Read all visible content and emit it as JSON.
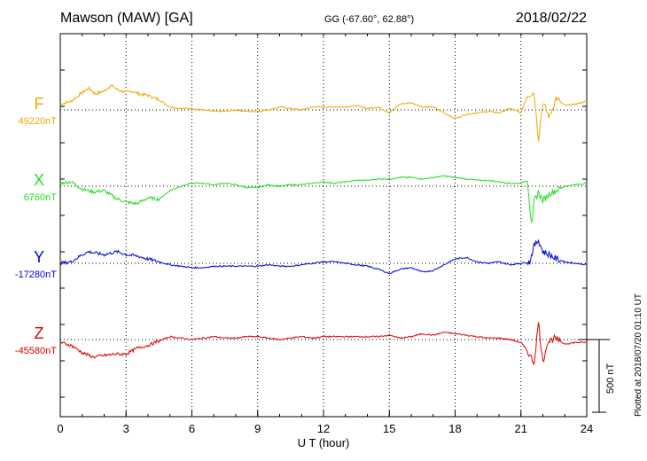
{
  "header": {
    "station": "Mawson (MAW)  [GA]",
    "coords": "GG (-67.60°,  62.88°)",
    "date": "2018/02/22"
  },
  "footer": {
    "plotted": "Plotted at 2018/07/20 01:10 UT"
  },
  "chart_data": {
    "type": "line",
    "xlabel": "U T (hour)",
    "xlim": [
      0,
      24
    ],
    "xticks": [
      0,
      3,
      6,
      9,
      12,
      15,
      18,
      21,
      24
    ],
    "grid": true,
    "scale_bar": {
      "label": "500 nT",
      "value_nT": 500
    },
    "series": [
      {
        "name": "F",
        "baseline_label": "49220nT",
        "baseline_nT": 49220,
        "color": "#f0a800",
        "x": [
          0,
          0.5,
          1,
          1.3,
          1.6,
          2,
          2.3,
          2.6,
          3,
          3.3,
          3.6,
          4,
          4.5,
          5,
          5.5,
          6,
          6.5,
          7,
          7.5,
          8,
          8.5,
          9,
          9.5,
          10,
          10.5,
          11,
          11.5,
          12,
          12.5,
          13,
          13.5,
          14,
          14.5,
          15,
          15.5,
          16,
          16.5,
          17,
          17.5,
          18,
          18.5,
          19,
          19.5,
          20,
          20.5,
          21,
          21.3,
          21.6,
          21.8,
          22,
          22.3,
          22.6,
          23,
          23.5,
          24
        ],
        "y": [
          40,
          60,
          120,
          150,
          110,
          130,
          170,
          140,
          120,
          130,
          110,
          100,
          70,
          20,
          10,
          10,
          0,
          -10,
          -10,
          0,
          -10,
          -10,
          0,
          20,
          10,
          0,
          20,
          20,
          20,
          20,
          30,
          10,
          20,
          -20,
          40,
          50,
          20,
          20,
          -20,
          -60,
          -30,
          -20,
          -10,
          -20,
          10,
          -20,
          100,
          120,
          -200,
          50,
          -50,
          80,
          30,
          40,
          60
        ]
      },
      {
        "name": "X",
        "baseline_label": "6760nT",
        "baseline_nT": 6760,
        "color": "#22dd22",
        "x": [
          0,
          0.5,
          1,
          1.5,
          2,
          2.5,
          3,
          3.5,
          4,
          4.5,
          5,
          5.5,
          6,
          6.5,
          7,
          7.5,
          8,
          8.5,
          9,
          9.5,
          10,
          10.5,
          11,
          11.5,
          12,
          12.5,
          13,
          13.5,
          14,
          14.5,
          15,
          15.5,
          16,
          16.5,
          17,
          17.5,
          18,
          18.5,
          19,
          19.5,
          20,
          20.5,
          21,
          21.3,
          21.5,
          21.6,
          21.8,
          22,
          22.3,
          22.6,
          23,
          23.5,
          24
        ],
        "y": [
          20,
          30,
          -20,
          -40,
          -30,
          -80,
          -110,
          -120,
          -80,
          -90,
          -30,
          0,
          20,
          20,
          10,
          20,
          10,
          -10,
          -10,
          10,
          0,
          10,
          10,
          20,
          30,
          20,
          30,
          40,
          40,
          50,
          50,
          60,
          60,
          50,
          60,
          70,
          60,
          50,
          40,
          40,
          30,
          20,
          20,
          40,
          -300,
          -100,
          -40,
          -100,
          -50,
          -30,
          0,
          10,
          20
        ]
      },
      {
        "name": "Y",
        "baseline_label": "-17280nT",
        "baseline_nT": -17280,
        "color": "#0000dd",
        "x": [
          0,
          0.5,
          1,
          1.3,
          1.6,
          2,
          2.3,
          2.6,
          3,
          3.5,
          4,
          4.5,
          5,
          5.5,
          6,
          6.5,
          7,
          7.5,
          8,
          8.5,
          9,
          9.5,
          10,
          10.5,
          11,
          11.5,
          12,
          12.5,
          13,
          13.5,
          14,
          14.5,
          15,
          15.5,
          16,
          16.5,
          17,
          17.5,
          18,
          18.5,
          19,
          19.5,
          20,
          20.5,
          21,
          21.4,
          21.6,
          21.8,
          22,
          22.3,
          22.6,
          23,
          23.5,
          24
        ],
        "y": [
          0,
          10,
          60,
          80,
          70,
          60,
          70,
          80,
          60,
          50,
          30,
          10,
          -10,
          -20,
          -30,
          -30,
          -20,
          -20,
          -20,
          -20,
          -20,
          -10,
          -20,
          -20,
          -10,
          0,
          10,
          10,
          0,
          -10,
          -20,
          -40,
          -70,
          -40,
          -30,
          -60,
          -50,
          -10,
          30,
          40,
          10,
          0,
          10,
          -10,
          0,
          10,
          120,
          160,
          80,
          60,
          30,
          10,
          0,
          -10
        ]
      },
      {
        "name": "Z",
        "baseline_label": "-45580nT",
        "baseline_nT": -45580,
        "color": "#dd0000",
        "x": [
          0,
          0.5,
          1,
          1.5,
          2,
          2.5,
          3,
          3.5,
          4,
          4.5,
          5,
          5.5,
          6,
          6.5,
          7,
          7.5,
          8,
          8.5,
          9,
          9.5,
          10,
          10.5,
          11,
          11.5,
          12,
          12.5,
          13,
          13.5,
          14,
          14.5,
          15,
          15.5,
          16,
          16.5,
          17,
          17.5,
          18,
          18.5,
          19,
          19.5,
          20,
          20.5,
          21,
          21.3,
          21.6,
          21.8,
          22,
          22.2,
          22.5,
          23,
          23.5,
          24
        ],
        "y": [
          -20,
          -40,
          -90,
          -120,
          -110,
          -100,
          -100,
          -60,
          -40,
          -10,
          20,
          10,
          0,
          10,
          20,
          10,
          10,
          20,
          20,
          10,
          0,
          10,
          20,
          10,
          20,
          20,
          20,
          20,
          20,
          20,
          30,
          10,
          20,
          40,
          30,
          50,
          40,
          30,
          20,
          10,
          10,
          0,
          -20,
          -80,
          -160,
          120,
          -160,
          -20,
          10,
          -30,
          -20,
          -20
        ]
      }
    ]
  }
}
